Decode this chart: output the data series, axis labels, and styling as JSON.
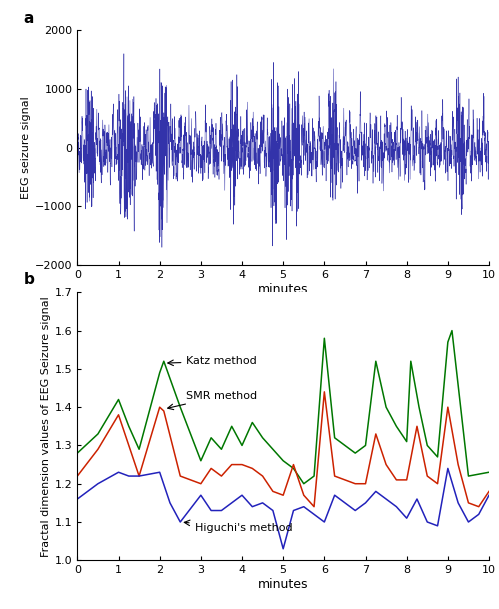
{
  "panel_a_label": "a",
  "panel_b_label": "b",
  "eeg_color": "#3333aa",
  "eeg_ylim": [
    -2000,
    2000
  ],
  "eeg_yticks": [
    -2000,
    -1000,
    0,
    1000,
    2000
  ],
  "eeg_xlabel": "minutes",
  "eeg_ylabel": "EEG seizure signal",
  "eeg_xlim": [
    0,
    10
  ],
  "eeg_xticks": [
    0,
    1,
    2,
    3,
    4,
    5,
    6,
    7,
    8,
    9,
    10
  ],
  "fd_ylim": [
    1.0,
    1.7
  ],
  "fd_yticks": [
    1.0,
    1.1,
    1.2,
    1.3,
    1.4,
    1.5,
    1.6,
    1.7
  ],
  "fd_xlabel": "minutes",
  "fd_ylabel": "Fractal dimension values of EEG Seizure signal",
  "fd_xlim": [
    0,
    10
  ],
  "fd_xticks": [
    0,
    1,
    2,
    3,
    4,
    5,
    6,
    7,
    8,
    9,
    10
  ],
  "katz_color": "#007700",
  "smr_color": "#cc2200",
  "higuchi_color": "#2222bb",
  "katz_label": "Katz method",
  "smr_label": "SMR method",
  "higuchi_label": "Higuchi's method",
  "katz_x": [
    0.0,
    0.5,
    1.0,
    1.25,
    1.5,
    2.0,
    2.1,
    2.5,
    3.0,
    3.25,
    3.5,
    3.75,
    4.0,
    4.25,
    4.5,
    4.75,
    5.0,
    5.25,
    5.5,
    5.75,
    6.0,
    6.25,
    6.5,
    6.75,
    7.0,
    7.25,
    7.5,
    7.75,
    8.0,
    8.1,
    8.3,
    8.5,
    8.75,
    9.0,
    9.1,
    9.5,
    10.0
  ],
  "katz_y": [
    1.28,
    1.33,
    1.42,
    1.35,
    1.29,
    1.49,
    1.52,
    1.4,
    1.26,
    1.32,
    1.29,
    1.35,
    1.3,
    1.36,
    1.32,
    1.29,
    1.26,
    1.24,
    1.2,
    1.22,
    1.58,
    1.32,
    1.3,
    1.28,
    1.3,
    1.52,
    1.4,
    1.35,
    1.31,
    1.52,
    1.4,
    1.3,
    1.27,
    1.57,
    1.6,
    1.22,
    1.23
  ],
  "smr_x": [
    0.0,
    0.5,
    1.0,
    1.25,
    1.5,
    2.0,
    2.1,
    2.5,
    3.0,
    3.25,
    3.5,
    3.75,
    4.0,
    4.25,
    4.5,
    4.75,
    5.0,
    5.25,
    5.5,
    5.75,
    6.0,
    6.25,
    6.5,
    6.75,
    7.0,
    7.25,
    7.5,
    7.75,
    8.0,
    8.25,
    8.5,
    8.75,
    9.0,
    9.25,
    9.5,
    9.75,
    10.0
  ],
  "smr_y": [
    1.22,
    1.29,
    1.38,
    1.3,
    1.22,
    1.4,
    1.39,
    1.22,
    1.2,
    1.24,
    1.22,
    1.25,
    1.25,
    1.24,
    1.22,
    1.18,
    1.17,
    1.25,
    1.17,
    1.14,
    1.44,
    1.22,
    1.21,
    1.2,
    1.2,
    1.33,
    1.25,
    1.21,
    1.21,
    1.35,
    1.22,
    1.2,
    1.4,
    1.25,
    1.15,
    1.14,
    1.18
  ],
  "higuchi_x": [
    0.0,
    0.5,
    1.0,
    1.25,
    1.5,
    2.0,
    2.25,
    2.5,
    3.0,
    3.25,
    3.5,
    3.75,
    4.0,
    4.25,
    4.5,
    4.75,
    5.0,
    5.25,
    5.5,
    5.75,
    6.0,
    6.25,
    6.5,
    6.75,
    7.0,
    7.25,
    7.5,
    7.75,
    8.0,
    8.25,
    8.5,
    8.75,
    9.0,
    9.25,
    9.5,
    9.75,
    10.0
  ],
  "higuchi_y": [
    1.16,
    1.2,
    1.23,
    1.22,
    1.22,
    1.23,
    1.15,
    1.1,
    1.17,
    1.13,
    1.13,
    1.15,
    1.17,
    1.14,
    1.15,
    1.13,
    1.03,
    1.13,
    1.14,
    1.12,
    1.1,
    1.17,
    1.15,
    1.13,
    1.15,
    1.18,
    1.16,
    1.14,
    1.11,
    1.16,
    1.1,
    1.09,
    1.24,
    1.15,
    1.1,
    1.12,
    1.17
  ],
  "background_color": "#ffffff",
  "figsize": [
    4.99,
    6.09
  ],
  "dpi": 100
}
